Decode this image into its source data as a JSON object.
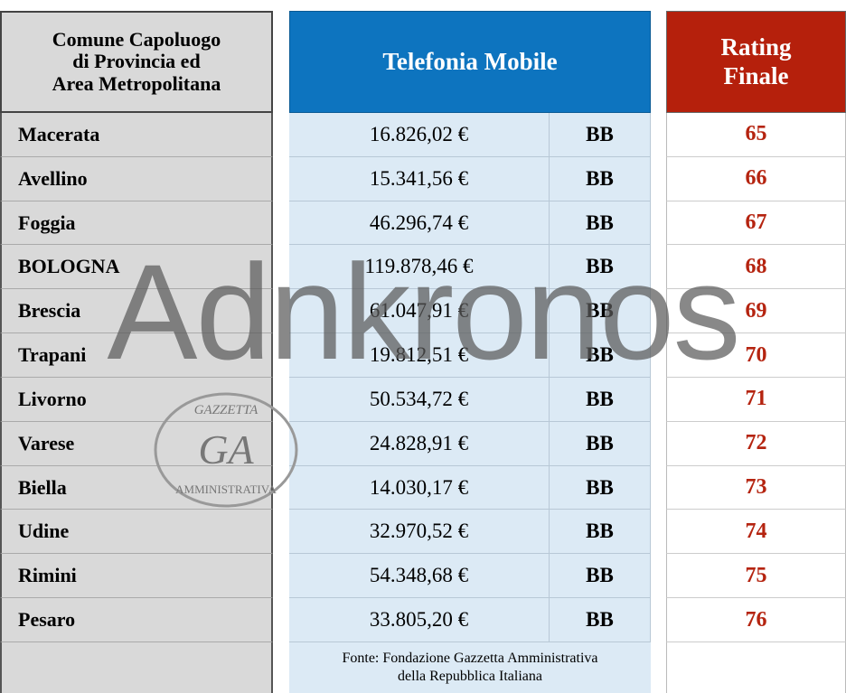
{
  "header": {
    "city_lines": [
      "Comune Capoluogo",
      "di Provincia ed",
      "Area Metropolitana"
    ],
    "service": "Telefonia Mobile",
    "rating_lines": [
      "Rating",
      "Finale"
    ]
  },
  "table": {
    "rows": [
      [
        "Macerata",
        "16.826,02 €",
        "BB",
        "65"
      ],
      [
        "Avellino",
        "15.341,56 €",
        "BB",
        "66"
      ],
      [
        "Foggia",
        "46.296,74 €",
        "BB",
        "67"
      ],
      [
        "BOLOGNA",
        "119.878,46 €",
        "BB",
        "68"
      ],
      [
        "Brescia",
        "61.047,91 €",
        "BB",
        "69"
      ],
      [
        "Trapani",
        "19.812,51 €",
        "BB",
        "70"
      ],
      [
        "Livorno",
        "50.534,72 €",
        "BB",
        "71"
      ],
      [
        "Varese",
        "24.828,91 €",
        "BB",
        "72"
      ],
      [
        "Biella",
        "14.030,17 €",
        "BB",
        "73"
      ],
      [
        "Udine",
        "32.970,52 €",
        "BB",
        "74"
      ],
      [
        "Rimini",
        "54.348,68 €",
        "BB",
        "75"
      ],
      [
        "Pesaro",
        "33.805,20 €",
        "BB",
        "76"
      ]
    ]
  },
  "footer": {
    "source_lines": [
      "Fonte: Fondazione Gazzetta Amministrativa",
      "della Repubblica Italiana"
    ]
  },
  "logo": {
    "initials": "GA",
    "top": "GAZZETTA",
    "bottom": "AMMINISTRATIVA"
  },
  "watermark": "Adnkronos"
}
